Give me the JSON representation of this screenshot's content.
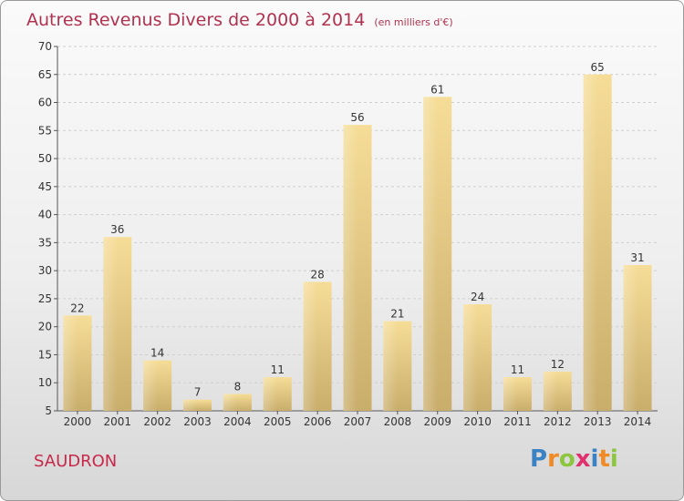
{
  "header": {
    "title": "Autres Revenus Divers de 2000 à 2014",
    "unit": "(en milliers d'€)"
  },
  "commune": "SAUDRON",
  "logo": {
    "letters": [
      {
        "char": "P",
        "color": "#3b82c4"
      },
      {
        "char": "r",
        "color": "#f08a24"
      },
      {
        "char": "o",
        "color": "#8cc63f"
      },
      {
        "char": "x",
        "color": "#e0316e"
      },
      {
        "char": "i",
        "color": "#3b82c4"
      },
      {
        "char": "t",
        "color": "#f08a24"
      },
      {
        "char": "i",
        "color": "#8cc63f"
      }
    ]
  },
  "colors": {
    "title": "#b0324f",
    "bar_light": "#f6dd97",
    "bar_dark": "#c9ad6b",
    "grid": "#cfcfcf"
  },
  "chart_data": {
    "type": "bar",
    "title": "Autres Revenus Divers de 2000 à 2014",
    "subtitle": "(en milliers d'€)",
    "xlabel": "",
    "ylabel": "",
    "categories": [
      "2000",
      "2001",
      "2002",
      "2003",
      "2004",
      "2005",
      "2006",
      "2007",
      "2008",
      "2009",
      "2010",
      "2011",
      "2012",
      "2013",
      "2014"
    ],
    "values": [
      22,
      36,
      14,
      7,
      8,
      11,
      28,
      56,
      21,
      61,
      24,
      11,
      12,
      65,
      31
    ],
    "ylim": [
      5,
      70
    ],
    "yticks": [
      5,
      10,
      15,
      20,
      25,
      30,
      35,
      40,
      45,
      50,
      55,
      60,
      65,
      70
    ],
    "grid": true,
    "data_labels": true
  }
}
